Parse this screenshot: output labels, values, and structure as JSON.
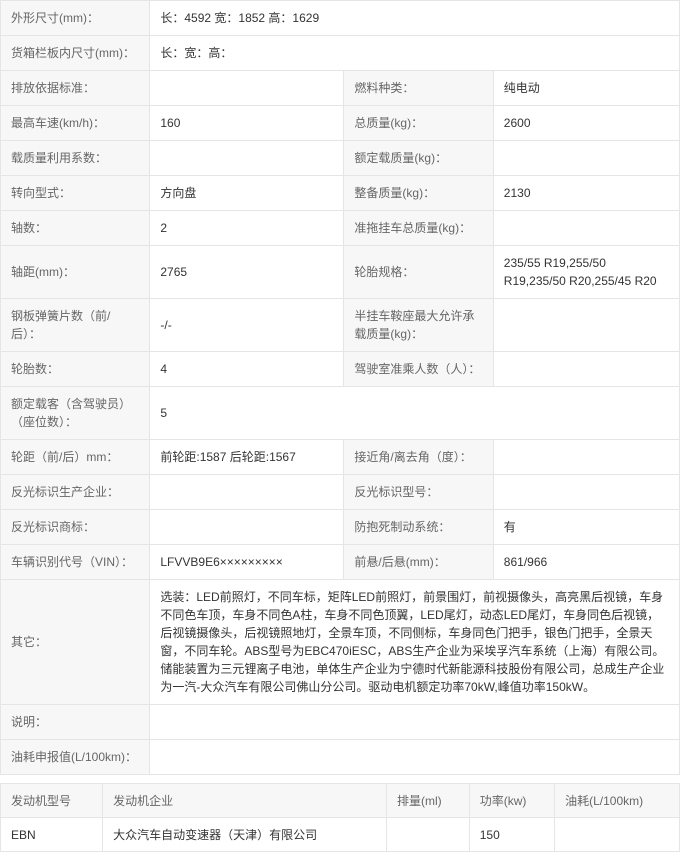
{
  "specs": {
    "dimensions_label": "外形尺寸(mm)：",
    "dimensions_value": "长：4592 宽：1852 高：1629",
    "cargo_label": "货箱栏板内尺寸(mm)：",
    "cargo_value": "长：宽：高：",
    "emission_label": "排放依据标准：",
    "emission_value": "",
    "fuel_label": "燃料种类：",
    "fuel_value": "纯电动",
    "top_speed_label": "最高车速(km/h)：",
    "top_speed_value": "160",
    "gross_mass_label": "总质量(kg)：",
    "gross_mass_value": "2600",
    "load_util_label": "载质量利用系数：",
    "load_util_value": "",
    "rated_load_label": "额定载质量(kg)：",
    "rated_load_value": "",
    "steering_label": "转向型式：",
    "steering_value": "方向盘",
    "curb_mass_label": "整备质量(kg)：",
    "curb_mass_value": "2130",
    "axles_label": "轴数：",
    "axles_value": "2",
    "trailer_mass_label": "准拖挂车总质量(kg)：",
    "trailer_mass_value": "",
    "wheelbase_label": "轴距(mm)：",
    "wheelbase_value": "2765",
    "tire_spec_label": "轮胎规格：",
    "tire_spec_value": "235/55 R19,255/50 R19,235/50 R20,255/45 R20",
    "spring_label": "钢板弹簧片数（前/后）：",
    "spring_value": "-/-",
    "saddle_label": "半挂车鞍座最大允许承载质量(kg)：",
    "saddle_value": "",
    "tires_label": "轮胎数：",
    "tires_value": "4",
    "cab_cap_label": "驾驶室准乘人数（人）：",
    "cab_cap_value": "",
    "passengers_label": "额定载客（含驾驶员）（座位数）：",
    "passengers_value": "5",
    "track_label": "轮距（前/后）mm：",
    "track_value": "前轮距:1587 后轮距:1567",
    "angle_label": "接近角/离去角（度）：",
    "angle_value": "",
    "reflector_mfr_label": "反光标识生产企业：",
    "reflector_mfr_value": "",
    "reflector_model_label": "反光标识型号：",
    "reflector_model_value": "",
    "reflector_tm_label": "反光标识商标：",
    "reflector_tm_value": "",
    "abs_label": "防抱死制动系统：",
    "abs_value": "有",
    "vin_label": "车辆识别代号（VIN）：",
    "vin_value": "LFVVB9E6×××××××××",
    "overhang_label": "前悬/后悬(mm)：",
    "overhang_value": "861/966",
    "other_label": "其它：",
    "other_value": "选装：LED前照灯，不同车标，矩阵LED前照灯，前景围灯，前视摄像头，高亮黑后视镜，车身不同色车顶，车身不同色A柱，车身不同色顶翼，LED尾灯，动态LED尾灯，车身同色后视镜，后视镜摄像头，后视镜照地灯，全景车顶，不同侧标，车身同色门把手，银色门把手，全景天窗，不同车轮。ABS型号为EBC470iESC，ABS生产企业为采埃孚汽车系统（上海）有限公司。储能装置为三元锂离子电池，单体生产企业为宁德时代新能源科技股份有限公司，总成生产企业为一汽-大众汽车有限公司佛山分公司。驱动电机额定功率70kW,峰值功率150kW。",
    "desc_label": "说明：",
    "desc_value": "",
    "fuel_cons_label": "油耗申报值(L/100km)：",
    "fuel_cons_value": ""
  },
  "engine": {
    "headers": {
      "model": "发动机型号",
      "mfr": "发动机企业",
      "disp": "排量(ml)",
      "power": "功率(kw)",
      "fuel": "油耗(L/100km)"
    },
    "row": {
      "model": "EBN",
      "mfr": "大众汽车自动变速器（天津）有限公司",
      "disp": "",
      "power": "150",
      "fuel": ""
    }
  }
}
